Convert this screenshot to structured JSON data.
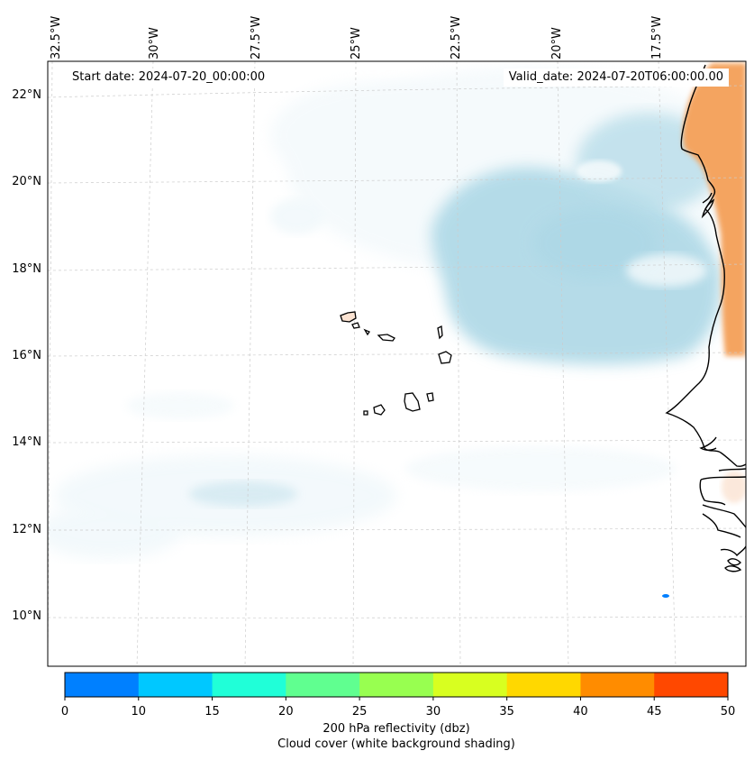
{
  "header": {
    "start_date": "Start date: 2024-07-20_00:00:00",
    "valid_date": "Valid_date: 2024-07-20T06:00:00.00"
  },
  "map": {
    "longitude_labels": [
      "32.5°W",
      "30°W",
      "27.5°W",
      "25°W",
      "22.5°W",
      "20°W",
      "17.5°W"
    ],
    "latitude_labels": [
      "22°N",
      "20°N",
      "18°N",
      "16°N",
      "14°N",
      "12°N",
      "10°N"
    ],
    "gridlines": true,
    "colors": {
      "cloud_cover": "#add8e6",
      "land_reflectivity": "#f4a460",
      "coastline": "#000000",
      "reflectivity_spot": "#007fff"
    }
  },
  "colorbar": {
    "ticks": [
      "0",
      "10",
      "15",
      "20",
      "25",
      "30",
      "35",
      "40",
      "45",
      "50"
    ],
    "colors": [
      "#0080ff",
      "#00c8ff",
      "#20ffd8",
      "#60ff90",
      "#98ff50",
      "#d8ff20",
      "#ffd800",
      "#ff8c00",
      "#ff4800"
    ],
    "label": "200 hPa reflectivity (dbz)",
    "sublabel": "Cloud cover (white background shading)"
  }
}
